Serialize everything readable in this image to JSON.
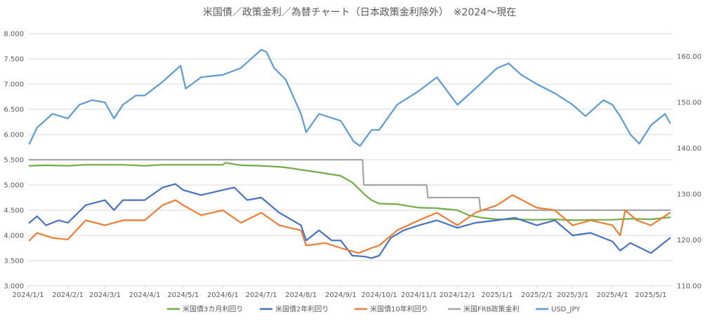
{
  "chart_data": {
    "type": "line",
    "title": "米国債／政策金利／為替チャート（日本政策金利除外）　※2024～現在",
    "x_ticks": [
      "2024/1/1",
      "2024/2/1",
      "2024/3/1",
      "2024/4/1",
      "2024/5/1",
      "2024/6/1",
      "2024/7/1",
      "2024/8/1",
      "2024/9/1",
      "2024/10/1",
      "2024/11/1",
      "2024/12/1",
      "2025/1/1",
      "2025/2/1",
      "2025/3/1",
      "2025/4/1",
      "2025/5/1"
    ],
    "y_left_ticks": [
      "3.000",
      "3.500",
      "4.000",
      "4.500",
      "5.000",
      "5.500",
      "6.000",
      "6.500",
      "7.000",
      "7.500",
      "8.000"
    ],
    "y_right_ticks": [
      "110.00",
      "120.00",
      "130.00",
      "140.00",
      "150.00",
      "160.00"
    ],
    "y_left_range": [
      3.0,
      8.0
    ],
    "y_right_range": [
      110,
      165
    ],
    "legend_position": "bottom",
    "grid": true,
    "series": [
      {
        "name": "米国債3カ月利回り",
        "axis": "left",
        "color": "#70ad47",
        "points": [
          [
            "2024-01-02",
            5.38
          ],
          [
            "2024-01-15",
            5.39
          ],
          [
            "2024-02-01",
            5.38
          ],
          [
            "2024-02-15",
            5.4
          ],
          [
            "2024-03-01",
            5.4
          ],
          [
            "2024-03-15",
            5.4
          ],
          [
            "2024-04-01",
            5.38
          ],
          [
            "2024-04-15",
            5.4
          ],
          [
            "2024-05-01",
            5.4
          ],
          [
            "2024-05-15",
            5.4
          ],
          [
            "2024-06-01",
            5.4
          ],
          [
            "2024-06-03",
            5.44
          ],
          [
            "2024-06-15",
            5.39
          ],
          [
            "2024-07-01",
            5.38
          ],
          [
            "2024-07-15",
            5.36
          ],
          [
            "2024-07-25",
            5.33
          ],
          [
            "2024-08-01",
            5.3
          ],
          [
            "2024-08-15",
            5.25
          ],
          [
            "2024-09-01",
            5.18
          ],
          [
            "2024-09-10",
            5.05
          ],
          [
            "2024-09-20",
            4.8
          ],
          [
            "2024-09-25",
            4.7
          ],
          [
            "2024-10-01",
            4.63
          ],
          [
            "2024-10-15",
            4.62
          ],
          [
            "2024-11-01",
            4.55
          ],
          [
            "2024-11-15",
            4.54
          ],
          [
            "2024-12-01",
            4.5
          ],
          [
            "2024-12-10",
            4.4
          ],
          [
            "2024-12-20",
            4.35
          ],
          [
            "2025-01-01",
            4.32
          ],
          [
            "2025-01-15",
            4.32
          ],
          [
            "2025-02-01",
            4.31
          ],
          [
            "2025-02-15",
            4.32
          ],
          [
            "2025-03-01",
            4.3
          ],
          [
            "2025-03-15",
            4.31
          ],
          [
            "2025-04-01",
            4.31
          ],
          [
            "2025-04-15",
            4.33
          ],
          [
            "2025-05-01",
            4.32
          ],
          [
            "2025-05-16",
            4.36
          ]
        ]
      },
      {
        "name": "米国債2年利回り",
        "axis": "left",
        "color": "#4472c4",
        "points": [
          [
            "2024-01-02",
            4.25
          ],
          [
            "2024-01-08",
            4.38
          ],
          [
            "2024-01-15",
            4.2
          ],
          [
            "2024-01-25",
            4.3
          ],
          [
            "2024-02-01",
            4.25
          ],
          [
            "2024-02-15",
            4.6
          ],
          [
            "2024-03-01",
            4.7
          ],
          [
            "2024-03-08",
            4.5
          ],
          [
            "2024-03-15",
            4.7
          ],
          [
            "2024-04-01",
            4.7
          ],
          [
            "2024-04-15",
            4.95
          ],
          [
            "2024-04-25",
            5.02
          ],
          [
            "2024-05-01",
            4.9
          ],
          [
            "2024-05-15",
            4.8
          ],
          [
            "2024-06-01",
            4.9
          ],
          [
            "2024-06-10",
            4.95
          ],
          [
            "2024-06-20",
            4.7
          ],
          [
            "2024-07-01",
            4.75
          ],
          [
            "2024-07-15",
            4.45
          ],
          [
            "2024-08-01",
            4.2
          ],
          [
            "2024-08-05",
            3.9
          ],
          [
            "2024-08-15",
            4.1
          ],
          [
            "2024-08-25",
            3.9
          ],
          [
            "2024-09-01",
            3.9
          ],
          [
            "2024-09-10",
            3.6
          ],
          [
            "2024-09-20",
            3.58
          ],
          [
            "2024-09-25",
            3.55
          ],
          [
            "2024-10-01",
            3.6
          ],
          [
            "2024-10-10",
            3.95
          ],
          [
            "2024-10-20",
            4.1
          ],
          [
            "2024-11-01",
            4.2
          ],
          [
            "2024-11-15",
            4.3
          ],
          [
            "2024-12-01",
            4.15
          ],
          [
            "2024-12-15",
            4.25
          ],
          [
            "2025-01-01",
            4.3
          ],
          [
            "2025-01-15",
            4.35
          ],
          [
            "2025-02-01",
            4.2
          ],
          [
            "2025-02-15",
            4.3
          ],
          [
            "2025-03-01",
            4.0
          ],
          [
            "2025-03-15",
            4.05
          ],
          [
            "2025-04-01",
            3.88
          ],
          [
            "2025-04-07",
            3.7
          ],
          [
            "2025-04-15",
            3.85
          ],
          [
            "2025-05-01",
            3.65
          ],
          [
            "2025-05-16",
            3.95
          ]
        ]
      },
      {
        "name": "米国債10年利回り",
        "axis": "left",
        "color": "#ed7d31",
        "points": [
          [
            "2024-01-02",
            3.9
          ],
          [
            "2024-01-08",
            4.05
          ],
          [
            "2024-01-20",
            3.95
          ],
          [
            "2024-02-01",
            3.92
          ],
          [
            "2024-02-15",
            4.3
          ],
          [
            "2024-03-01",
            4.2
          ],
          [
            "2024-03-15",
            4.3
          ],
          [
            "2024-04-01",
            4.3
          ],
          [
            "2024-04-15",
            4.6
          ],
          [
            "2024-04-25",
            4.7
          ],
          [
            "2024-05-01",
            4.6
          ],
          [
            "2024-05-15",
            4.4
          ],
          [
            "2024-06-01",
            4.5
          ],
          [
            "2024-06-15",
            4.25
          ],
          [
            "2024-07-01",
            4.45
          ],
          [
            "2024-07-15",
            4.2
          ],
          [
            "2024-08-01",
            4.1
          ],
          [
            "2024-08-05",
            3.8
          ],
          [
            "2024-08-20",
            3.85
          ],
          [
            "2024-09-01",
            3.75
          ],
          [
            "2024-09-15",
            3.65
          ],
          [
            "2024-09-25",
            3.75
          ],
          [
            "2024-10-01",
            3.8
          ],
          [
            "2024-10-15",
            4.1
          ],
          [
            "2024-11-01",
            4.3
          ],
          [
            "2024-11-15",
            4.45
          ],
          [
            "2024-12-01",
            4.2
          ],
          [
            "2024-12-15",
            4.45
          ],
          [
            "2025-01-01",
            4.6
          ],
          [
            "2025-01-13",
            4.8
          ],
          [
            "2025-02-01",
            4.55
          ],
          [
            "2025-02-15",
            4.5
          ],
          [
            "2025-03-01",
            4.2
          ],
          [
            "2025-03-15",
            4.3
          ],
          [
            "2025-04-01",
            4.2
          ],
          [
            "2025-04-07",
            4.0
          ],
          [
            "2025-04-11",
            4.5
          ],
          [
            "2025-04-20",
            4.3
          ],
          [
            "2025-05-01",
            4.2
          ],
          [
            "2025-05-16",
            4.45
          ]
        ]
      },
      {
        "name": "米国FRB政策金利",
        "axis": "left",
        "color": "#a5a5a5",
        "points": [
          [
            "2024-01-02",
            5.5
          ],
          [
            "2024-09-18",
            5.5
          ],
          [
            "2024-09-19",
            5.0
          ],
          [
            "2024-11-07",
            5.0
          ],
          [
            "2024-11-08",
            4.75
          ],
          [
            "2024-12-18",
            4.75
          ],
          [
            "2024-12-19",
            4.5
          ],
          [
            "2025-05-16",
            4.5
          ]
        ]
      },
      {
        "name": "USD_JPY",
        "axis": "right",
        "color": "#5b9bd5",
        "points": [
          [
            "2024-01-02",
            141.0
          ],
          [
            "2024-01-08",
            144.5
          ],
          [
            "2024-01-20",
            147.5
          ],
          [
            "2024-02-01",
            146.5
          ],
          [
            "2024-02-10",
            149.5
          ],
          [
            "2024-02-20",
            150.5
          ],
          [
            "2024-03-01",
            150.0
          ],
          [
            "2024-03-08",
            146.5
          ],
          [
            "2024-03-15",
            149.5
          ],
          [
            "2024-03-25",
            151.5
          ],
          [
            "2024-04-01",
            151.5
          ],
          [
            "2024-04-15",
            154.5
          ],
          [
            "2024-04-29",
            158.0
          ],
          [
            "2024-05-03",
            153.0
          ],
          [
            "2024-05-15",
            155.5
          ],
          [
            "2024-06-01",
            156.0
          ],
          [
            "2024-06-15",
            157.5
          ],
          [
            "2024-07-01",
            161.5
          ],
          [
            "2024-07-05",
            161.0
          ],
          [
            "2024-07-11",
            157.5
          ],
          [
            "2024-07-20",
            155.0
          ],
          [
            "2024-08-01",
            147.5
          ],
          [
            "2024-08-05",
            143.5
          ],
          [
            "2024-08-15",
            147.5
          ],
          [
            "2024-09-01",
            146.0
          ],
          [
            "2024-09-11",
            141.5
          ],
          [
            "2024-09-16",
            140.5
          ],
          [
            "2024-09-25",
            144.0
          ],
          [
            "2024-10-01",
            144.0
          ],
          [
            "2024-10-15",
            149.5
          ],
          [
            "2024-11-01",
            152.5
          ],
          [
            "2024-11-15",
            155.5
          ],
          [
            "2024-12-01",
            149.5
          ],
          [
            "2024-12-15",
            153.0
          ],
          [
            "2025-01-01",
            157.5
          ],
          [
            "2025-01-10",
            158.5
          ],
          [
            "2025-01-20",
            156.0
          ],
          [
            "2025-02-01",
            154.0
          ],
          [
            "2025-02-15",
            152.0
          ],
          [
            "2025-03-01",
            149.5
          ],
          [
            "2025-03-11",
            147.0
          ],
          [
            "2025-03-25",
            150.5
          ],
          [
            "2025-04-01",
            149.5
          ],
          [
            "2025-04-07",
            147.0
          ],
          [
            "2025-04-15",
            143.0
          ],
          [
            "2025-04-22",
            141.0
          ],
          [
            "2025-05-01",
            145.0
          ],
          [
            "2025-05-12",
            147.5
          ],
          [
            "2025-05-16",
            145.5
          ]
        ]
      }
    ]
  },
  "colors": {
    "grid": "#d9d9d9",
    "text": "#595959"
  }
}
